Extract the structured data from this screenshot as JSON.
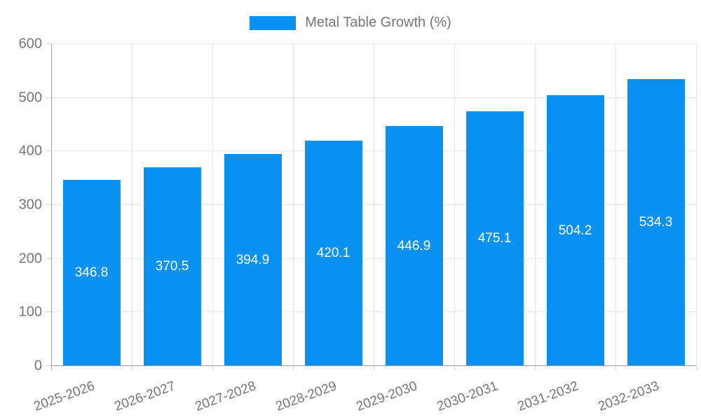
{
  "chart_data": {
    "type": "bar",
    "title": "Metal Table Growth (%)",
    "legend_position": "top",
    "categories": [
      "2025-2026",
      "2026-2027",
      "2027-2028",
      "2028-2029",
      "2029-2030",
      "2030-2031",
      "2031-2032",
      "2032-2033"
    ],
    "values": [
      346.8,
      370.5,
      394.9,
      420.1,
      446.9,
      475.1,
      504.2,
      534.3
    ],
    "value_labels_position": "inside-center",
    "xlabel": "",
    "ylabel": "",
    "ylim": [
      0,
      600
    ],
    "yticks": [
      0,
      100,
      200,
      300,
      400,
      500,
      600
    ],
    "grid": true,
    "colors": {
      "bar": "#0a91f2",
      "bar_value_text": "#ffffff",
      "axis_text": "#757575",
      "grid_line": "#e6e6e6",
      "axis_line": "#9e9e9e",
      "tick_line": "#cfcfcf"
    }
  }
}
